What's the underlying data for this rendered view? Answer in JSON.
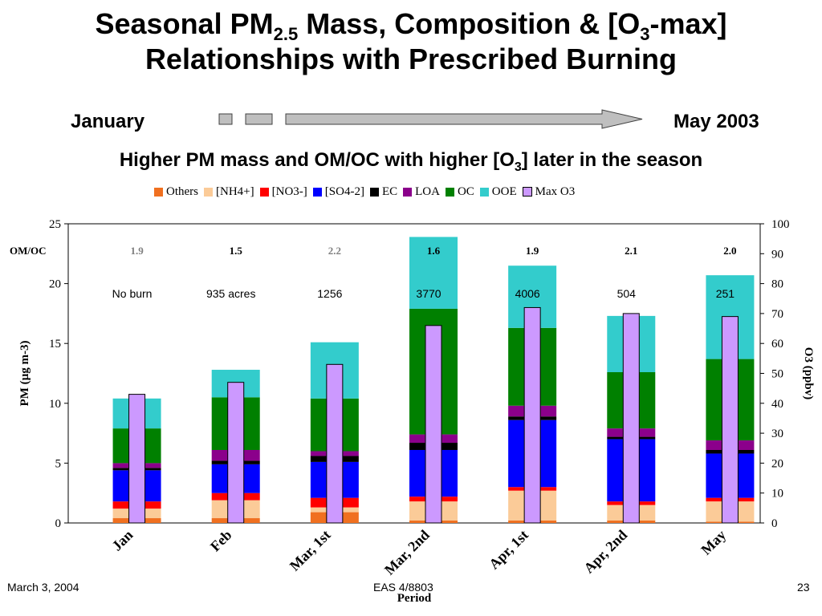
{
  "slide": {
    "title_line1_a": "Seasonal PM",
    "title_line1_sub": "2.5",
    "title_line1_b": " Mass, Composition & [O",
    "title_line1_sub2": "3",
    "title_line1_c": "-max]",
    "title_line2": "Relationships with Prescribed Burning",
    "timeline_left": "January",
    "timeline_right": "May 2003",
    "subtitle_a": "Higher PM mass and OM/OC with higher [O",
    "subtitle_sub": "3",
    "subtitle_b": "] later in the season",
    "footer_left": "March 3, 2004",
    "footer_center": "EAS 4/8803",
    "footer_right": "23"
  },
  "chart_data": {
    "type": "bar",
    "stacked": true,
    "categories": [
      "Jan",
      "Feb",
      "Mar, 1st",
      "Mar, 2nd",
      "Apr, 1st",
      "Apr, 2nd",
      "May"
    ],
    "xlabel": "Period",
    "ylabel": "PM (µg m-3)",
    "ylabel_right": "O3 (ppbv)",
    "ylim": [
      0,
      25
    ],
    "yticks": [
      0,
      5,
      10,
      15,
      20,
      25
    ],
    "ylim_right": [
      0,
      100
    ],
    "yticks_right": [
      0,
      10,
      20,
      30,
      40,
      50,
      60,
      70,
      80,
      90,
      100
    ],
    "legend_position": "top",
    "series": [
      {
        "name": "Others",
        "color": "#F07020",
        "values": [
          0.4,
          0.4,
          0.9,
          0.2,
          0.2,
          0.2,
          0.1
        ]
      },
      {
        "name": "[NH4+]",
        "color": "#FBCB98",
        "values": [
          0.8,
          1.5,
          0.4,
          1.6,
          2.5,
          1.3,
          1.7
        ]
      },
      {
        "name": "[NO3-]",
        "color": "#FF0000",
        "values": [
          0.6,
          0.6,
          0.8,
          0.4,
          0.3,
          0.3,
          0.3
        ]
      },
      {
        "name": "[SO4-2]",
        "color": "#0000FF",
        "values": [
          2.6,
          2.4,
          3.0,
          3.9,
          5.6,
          5.2,
          3.7
        ]
      },
      {
        "name": "EC",
        "color": "#000000",
        "values": [
          0.2,
          0.3,
          0.5,
          0.6,
          0.3,
          0.2,
          0.3
        ]
      },
      {
        "name": "LOA",
        "color": "#8B008B",
        "values": [
          0.4,
          0.9,
          0.4,
          0.7,
          0.9,
          0.7,
          0.8
        ]
      },
      {
        "name": "OC",
        "color": "#008000",
        "values": [
          2.9,
          4.4,
          4.4,
          10.5,
          6.5,
          4.7,
          6.8
        ]
      },
      {
        "name": "OOE",
        "color": "#33CCCC",
        "values": [
          2.5,
          2.3,
          4.7,
          6.0,
          5.2,
          4.7,
          7.0
        ]
      }
    ],
    "line_series": {
      "name": "Max O3",
      "color": "#CC99FF",
      "axis": "right",
      "values": [
        43,
        47,
        53,
        66,
        72,
        70,
        69
      ]
    },
    "om_oc_label": "OM/OC",
    "om_oc": [
      "1.9",
      "1.5",
      "2.2",
      "1.6",
      "1.9",
      "2.1",
      "2.0"
    ],
    "om_oc_colors": [
      "#808080",
      "#000000",
      "#808080",
      "#000000",
      "#000000",
      "#000000",
      "#000000"
    ],
    "burned_acres": [
      "No burn",
      "935 acres",
      "1256",
      "3770",
      "4006",
      "504",
      "251"
    ]
  }
}
